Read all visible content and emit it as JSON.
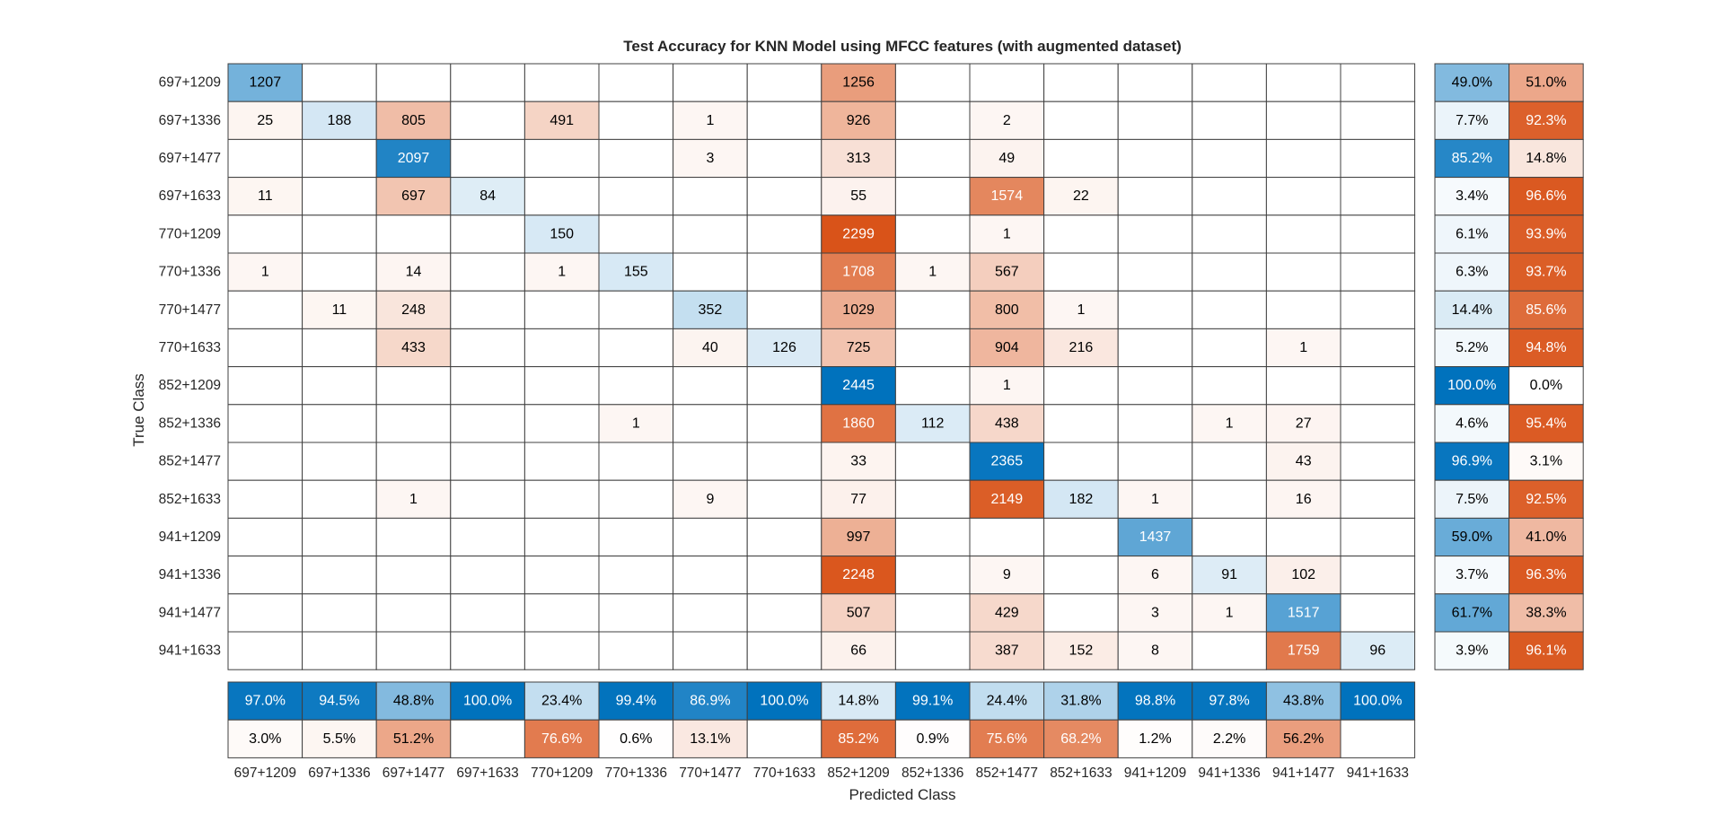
{
  "chart_data": {
    "type": "heatmap",
    "title": "Test Accuracy for KNN Model using MFCC features (with augmented dataset)",
    "xlabel": "Predicted Class",
    "ylabel": "True Class",
    "classes": [
      "697+1209",
      "697+1336",
      "697+1477",
      "697+1633",
      "770+1209",
      "770+1336",
      "770+1477",
      "770+1633",
      "852+1209",
      "852+1336",
      "852+1477",
      "852+1633",
      "941+1209",
      "941+1336",
      "941+1477",
      "941+1633"
    ],
    "matrix": [
      [
        1207,
        0,
        0,
        0,
        0,
        0,
        0,
        0,
        1256,
        0,
        0,
        0,
        0,
        0,
        0,
        0
      ],
      [
        25,
        188,
        805,
        0,
        491,
        0,
        1,
        0,
        926,
        0,
        2,
        0,
        0,
        0,
        0,
        0
      ],
      [
        0,
        0,
        2097,
        0,
        0,
        0,
        3,
        0,
        313,
        0,
        49,
        0,
        0,
        0,
        0,
        0
      ],
      [
        11,
        0,
        697,
        84,
        0,
        0,
        0,
        0,
        55,
        0,
        1574,
        22,
        0,
        0,
        0,
        0
      ],
      [
        0,
        0,
        0,
        0,
        150,
        0,
        0,
        0,
        2299,
        0,
        1,
        0,
        0,
        0,
        0,
        0
      ],
      [
        1,
        0,
        14,
        0,
        1,
        155,
        0,
        0,
        1708,
        1,
        567,
        0,
        0,
        0,
        0,
        0
      ],
      [
        0,
        11,
        248,
        0,
        0,
        0,
        352,
        0,
        1029,
        0,
        800,
        1,
        0,
        0,
        0,
        0
      ],
      [
        0,
        0,
        433,
        0,
        0,
        0,
        40,
        126,
        725,
        0,
        904,
        216,
        0,
        0,
        1,
        0
      ],
      [
        0,
        0,
        0,
        0,
        0,
        0,
        0,
        0,
        2445,
        0,
        1,
        0,
        0,
        0,
        0,
        0
      ],
      [
        0,
        0,
        0,
        0,
        0,
        1,
        0,
        0,
        1860,
        112,
        438,
        0,
        0,
        1,
        27,
        0
      ],
      [
        0,
        0,
        0,
        0,
        0,
        0,
        0,
        0,
        33,
        0,
        2365,
        0,
        0,
        0,
        43,
        0
      ],
      [
        0,
        0,
        1,
        0,
        0,
        0,
        9,
        0,
        77,
        0,
        2149,
        182,
        1,
        0,
        16,
        0
      ],
      [
        0,
        0,
        0,
        0,
        0,
        0,
        0,
        0,
        997,
        0,
        0,
        0,
        1437,
        0,
        0,
        0
      ],
      [
        0,
        0,
        0,
        0,
        0,
        0,
        0,
        0,
        2248,
        0,
        9,
        0,
        6,
        91,
        102,
        0
      ],
      [
        0,
        0,
        0,
        0,
        0,
        0,
        0,
        0,
        507,
        0,
        429,
        0,
        3,
        1,
        1517,
        0
      ],
      [
        0,
        0,
        0,
        0,
        0,
        0,
        0,
        0,
        66,
        0,
        387,
        152,
        8,
        0,
        1759,
        96
      ]
    ],
    "row_summary": [
      [
        "49.0%",
        "51.0%"
      ],
      [
        "7.7%",
        "92.3%"
      ],
      [
        "85.2%",
        "14.8%"
      ],
      [
        "3.4%",
        "96.6%"
      ],
      [
        "6.1%",
        "93.9%"
      ],
      [
        "6.3%",
        "93.7%"
      ],
      [
        "14.4%",
        "85.6%"
      ],
      [
        "5.2%",
        "94.8%"
      ],
      [
        "100.0%",
        "0.0%"
      ],
      [
        "4.6%",
        "95.4%"
      ],
      [
        "96.9%",
        "3.1%"
      ],
      [
        "7.5%",
        "92.5%"
      ],
      [
        "59.0%",
        "41.0%"
      ],
      [
        "3.7%",
        "96.3%"
      ],
      [
        "61.7%",
        "38.3%"
      ],
      [
        "3.9%",
        "96.1%"
      ]
    ],
    "column_summary": {
      "correct": [
        "97.0%",
        "94.5%",
        "48.8%",
        "100.0%",
        "23.4%",
        "99.4%",
        "86.9%",
        "100.0%",
        "14.8%",
        "99.1%",
        "24.4%",
        "31.8%",
        "98.8%",
        "97.8%",
        "43.8%",
        "100.0%"
      ],
      "incorrect": [
        "3.0%",
        "5.5%",
        "51.2%",
        "",
        "76.6%",
        "0.6%",
        "13.1%",
        "",
        "85.2%",
        "0.9%",
        "75.6%",
        "68.2%",
        "1.2%",
        "2.2%",
        "56.2%",
        ""
      ]
    },
    "colors": {
      "correct": "#0072BD",
      "incorrect": "#D95319",
      "light_text": "#ffffff",
      "dark_text": "#000000",
      "grid": "#404040"
    },
    "grid": true,
    "legend": "none"
  }
}
